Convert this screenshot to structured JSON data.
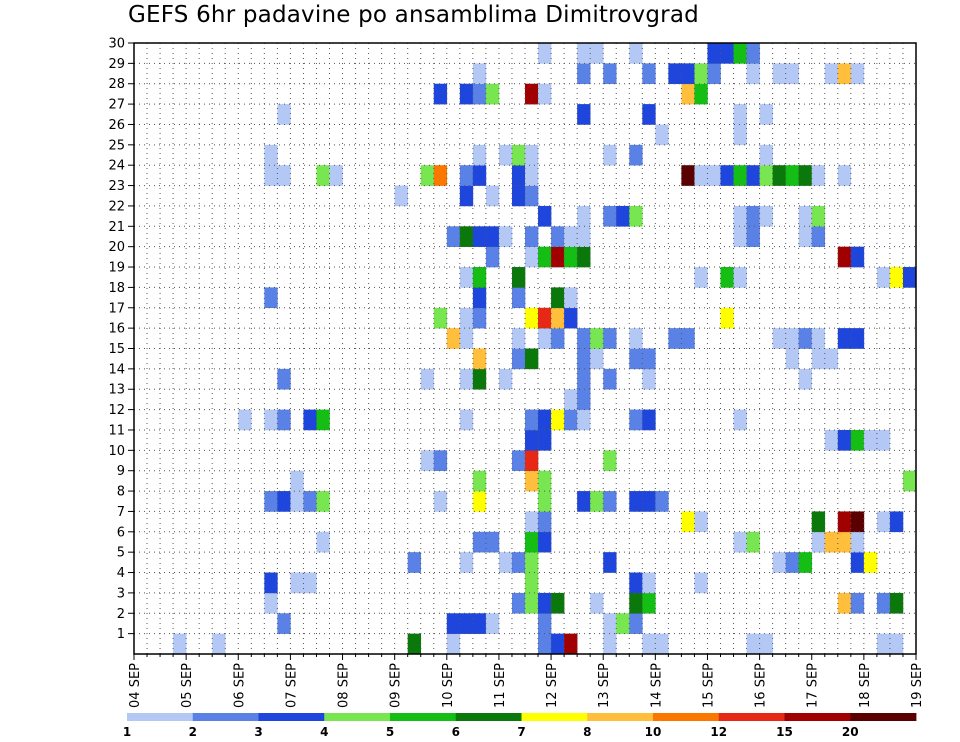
{
  "chart_data": {
    "type": "heatmap",
    "title": "GEFS 6hr padavine po ansamblima Dimitrovgrad",
    "ylim": [
      0,
      30
    ],
    "y_tick_labels": [
      "1",
      "2",
      "3",
      "4",
      "5",
      "6",
      "7",
      "8",
      "9",
      "10",
      "11",
      "12",
      "13",
      "14",
      "15",
      "16",
      "17",
      "18",
      "19",
      "20",
      "21",
      "22",
      "23",
      "24",
      "25",
      "26",
      "27",
      "28",
      "29",
      "30"
    ],
    "x_tick_labels": [
      "04 SEP",
      "05 SEP",
      "06 SEP",
      "07 SEP",
      "08 SEP",
      "09 SEP",
      "10 SEP",
      "11 SEP",
      "12 SEP",
      "13 SEP",
      "14 SEP",
      "15 SEP",
      "16 SEP",
      "17 SEP",
      "18 SEP",
      "19 SEP"
    ],
    "time_steps": 60,
    "grid": true,
    "colorbar": {
      "labels": [
        "1",
        "2",
        "3",
        "4",
        "5",
        "6",
        "7",
        "8",
        "10",
        "12",
        "15",
        "20"
      ],
      "colors": [
        "#b4c8f5",
        "#5a82e6",
        "#1e46dc",
        "#78e650",
        "#14be14",
        "#0a780a",
        "#ffff00",
        "#ffbe3c",
        "#fa7800",
        "#e62814",
        "#a00000",
        "#5a0000"
      ]
    },
    "cells": [
      [
        3,
        0,
        "#b4c8f5"
      ],
      [
        6,
        0,
        "#b4c8f5"
      ],
      [
        21,
        0,
        "#0a780a"
      ],
      [
        24,
        0,
        "#b4c8f5"
      ],
      [
        31,
        0,
        "#5a82e6"
      ],
      [
        32,
        0,
        "#1e46dc"
      ],
      [
        33,
        0,
        "#a00000"
      ],
      [
        36,
        0,
        "#b4c8f5"
      ],
      [
        39,
        0,
        "#b4c8f5"
      ],
      [
        40,
        0,
        "#b4c8f5"
      ],
      [
        47,
        0,
        "#b4c8f5"
      ],
      [
        48,
        0,
        "#b4c8f5"
      ],
      [
        57,
        0,
        "#b4c8f5"
      ],
      [
        58,
        0,
        "#b4c8f5"
      ],
      [
        11,
        1,
        "#5a82e6"
      ],
      [
        24,
        1,
        "#1e46dc"
      ],
      [
        25,
        1,
        "#1e46dc"
      ],
      [
        26,
        1,
        "#1e46dc"
      ],
      [
        27,
        1,
        "#b4c8f5"
      ],
      [
        31,
        1,
        "#5a82e6"
      ],
      [
        36,
        1,
        "#b4c8f5"
      ],
      [
        37,
        1,
        "#78e650"
      ],
      [
        38,
        1,
        "#5a82e6"
      ],
      [
        10,
        2,
        "#b4c8f5"
      ],
      [
        29,
        2,
        "#5a82e6"
      ],
      [
        30,
        2,
        "#78e650"
      ],
      [
        31,
        2,
        "#1e46dc"
      ],
      [
        32,
        2,
        "#0a780a"
      ],
      [
        35,
        2,
        "#b4c8f5"
      ],
      [
        38,
        2,
        "#0a780a"
      ],
      [
        39,
        2,
        "#14be14"
      ],
      [
        54,
        2,
        "#ffbe3c"
      ],
      [
        55,
        2,
        "#5a82e6"
      ],
      [
        57,
        2,
        "#5a82e6"
      ],
      [
        58,
        2,
        "#0a780a"
      ],
      [
        10,
        3,
        "#1e46dc"
      ],
      [
        12,
        3,
        "#b4c8f5"
      ],
      [
        13,
        3,
        "#b4c8f5"
      ],
      [
        30,
        3,
        "#78e650"
      ],
      [
        38,
        3,
        "#1e46dc"
      ],
      [
        39,
        3,
        "#b4c8f5"
      ],
      [
        43,
        3,
        "#b4c8f5"
      ],
      [
        21,
        4,
        "#5a82e6"
      ],
      [
        25,
        4,
        "#b4c8f5"
      ],
      [
        28,
        4,
        "#b4c8f5"
      ],
      [
        29,
        4,
        "#5a82e6"
      ],
      [
        30,
        4,
        "#78e650"
      ],
      [
        36,
        4,
        "#1e46dc"
      ],
      [
        49,
        4,
        "#b4c8f5"
      ],
      [
        50,
        4,
        "#5a82e6"
      ],
      [
        51,
        4,
        "#14be14"
      ],
      [
        55,
        4,
        "#1e46dc"
      ],
      [
        56,
        4,
        "#ffff00"
      ],
      [
        14,
        5,
        "#b4c8f5"
      ],
      [
        26,
        5,
        "#5a82e6"
      ],
      [
        27,
        5,
        "#5a82e6"
      ],
      [
        30,
        5,
        "#14be14"
      ],
      [
        31,
        5,
        "#1e46dc"
      ],
      [
        46,
        5,
        "#b4c8f5"
      ],
      [
        47,
        5,
        "#78e650"
      ],
      [
        52,
        5,
        "#b4c8f5"
      ],
      [
        53,
        5,
        "#ffbe3c"
      ],
      [
        54,
        5,
        "#ffbe3c"
      ],
      [
        55,
        5,
        "#b4c8f5"
      ],
      [
        30,
        6,
        "#b4c8f5"
      ],
      [
        31,
        6,
        "#5a82e6"
      ],
      [
        42,
        6,
        "#ffff00"
      ],
      [
        43,
        6,
        "#b4c8f5"
      ],
      [
        52,
        6,
        "#0a780a"
      ],
      [
        54,
        6,
        "#a00000"
      ],
      [
        55,
        6,
        "#5a0000"
      ],
      [
        57,
        6,
        "#b4c8f5"
      ],
      [
        58,
        6,
        "#1e46dc"
      ],
      [
        10,
        7,
        "#5a82e6"
      ],
      [
        11,
        7,
        "#1e46dc"
      ],
      [
        12,
        7,
        "#b4c8f5"
      ],
      [
        13,
        7,
        "#5a82e6"
      ],
      [
        14,
        7,
        "#78e650"
      ],
      [
        23,
        7,
        "#b4c8f5"
      ],
      [
        26,
        7,
        "#ffff00"
      ],
      [
        31,
        7,
        "#78e650"
      ],
      [
        34,
        7,
        "#1e46dc"
      ],
      [
        35,
        7,
        "#78e650"
      ],
      [
        36,
        7,
        "#5a82e6"
      ],
      [
        38,
        7,
        "#1e46dc"
      ],
      [
        39,
        7,
        "#1e46dc"
      ],
      [
        40,
        7,
        "#5a82e6"
      ],
      [
        12,
        8,
        "#b4c8f5"
      ],
      [
        26,
        8,
        "#78e650"
      ],
      [
        30,
        8,
        "#ffbe3c"
      ],
      [
        31,
        8,
        "#78e650"
      ],
      [
        59,
        8,
        "#78e650"
      ],
      [
        22,
        9,
        "#b4c8f5"
      ],
      [
        23,
        9,
        "#5a82e6"
      ],
      [
        29,
        9,
        "#5a82e6"
      ],
      [
        30,
        9,
        "#e62814"
      ],
      [
        36,
        9,
        "#78e650"
      ],
      [
        30,
        10,
        "#1e46dc"
      ],
      [
        31,
        10,
        "#1e46dc"
      ],
      [
        53,
        10,
        "#b4c8f5"
      ],
      [
        54,
        10,
        "#1e46dc"
      ],
      [
        55,
        10,
        "#14be14"
      ],
      [
        56,
        10,
        "#b4c8f5"
      ],
      [
        57,
        10,
        "#b4c8f5"
      ],
      [
        8,
        11,
        "#b4c8f5"
      ],
      [
        10,
        11,
        "#b4c8f5"
      ],
      [
        11,
        11,
        "#5a82e6"
      ],
      [
        13,
        11,
        "#1e46dc"
      ],
      [
        14,
        11,
        "#14be14"
      ],
      [
        25,
        11,
        "#b4c8f5"
      ],
      [
        30,
        11,
        "#5a82e6"
      ],
      [
        31,
        11,
        "#1e46dc"
      ],
      [
        32,
        11,
        "#ffff00"
      ],
      [
        33,
        11,
        "#5a82e6"
      ],
      [
        34,
        11,
        "#b4c8f5"
      ],
      [
        38,
        11,
        "#5a82e6"
      ],
      [
        39,
        11,
        "#1e46dc"
      ],
      [
        46,
        11,
        "#b4c8f5"
      ],
      [
        33,
        12,
        "#b4c8f5"
      ],
      [
        34,
        12,
        "#5a82e6"
      ],
      [
        11,
        13,
        "#5a82e6"
      ],
      [
        22,
        13,
        "#b4c8f5"
      ],
      [
        25,
        13,
        "#b4c8f5"
      ],
      [
        26,
        13,
        "#0a780a"
      ],
      [
        28,
        13,
        "#b4c8f5"
      ],
      [
        34,
        13,
        "#5a82e6"
      ],
      [
        36,
        13,
        "#5a82e6"
      ],
      [
        39,
        13,
        "#b4c8f5"
      ],
      [
        51,
        13,
        "#b4c8f5"
      ],
      [
        26,
        14,
        "#ffbe3c"
      ],
      [
        29,
        14,
        "#5a82e6"
      ],
      [
        30,
        14,
        "#0a780a"
      ],
      [
        34,
        14,
        "#5a82e6"
      ],
      [
        35,
        14,
        "#b4c8f5"
      ],
      [
        38,
        14,
        "#5a82e6"
      ],
      [
        39,
        14,
        "#5a82e6"
      ],
      [
        50,
        14,
        "#b4c8f5"
      ],
      [
        52,
        14,
        "#b4c8f5"
      ],
      [
        53,
        14,
        "#b4c8f5"
      ],
      [
        24,
        15,
        "#ffbe3c"
      ],
      [
        25,
        15,
        "#b4c8f5"
      ],
      [
        29,
        15,
        "#b4c8f5"
      ],
      [
        31,
        15,
        "#b4c8f5"
      ],
      [
        32,
        15,
        "#5a82e6"
      ],
      [
        34,
        15,
        "#5a82e6"
      ],
      [
        35,
        15,
        "#78e650"
      ],
      [
        36,
        15,
        "#5a82e6"
      ],
      [
        38,
        15,
        "#b4c8f5"
      ],
      [
        41,
        15,
        "#5a82e6"
      ],
      [
        42,
        15,
        "#5a82e6"
      ],
      [
        49,
        15,
        "#b4c8f5"
      ],
      [
        50,
        15,
        "#b4c8f5"
      ],
      [
        51,
        15,
        "#5a82e6"
      ],
      [
        52,
        15,
        "#b4c8f5"
      ],
      [
        54,
        15,
        "#1e46dc"
      ],
      [
        55,
        15,
        "#1e46dc"
      ],
      [
        23,
        16,
        "#78e650"
      ],
      [
        25,
        16,
        "#b4c8f5"
      ],
      [
        26,
        16,
        "#5a82e6"
      ],
      [
        30,
        16,
        "#ffff00"
      ],
      [
        31,
        16,
        "#e62814"
      ],
      [
        32,
        16,
        "#ffbe3c"
      ],
      [
        33,
        16,
        "#1e46dc"
      ],
      [
        45,
        16,
        "#ffff00"
      ],
      [
        10,
        17,
        "#5a82e6"
      ],
      [
        26,
        17,
        "#1e46dc"
      ],
      [
        29,
        17,
        "#5a82e6"
      ],
      [
        32,
        17,
        "#0a780a"
      ],
      [
        33,
        17,
        "#b4c8f5"
      ],
      [
        25,
        18,
        "#b4c8f5"
      ],
      [
        26,
        18,
        "#14be14"
      ],
      [
        29,
        18,
        "#0a780a"
      ],
      [
        43,
        18,
        "#b4c8f5"
      ],
      [
        45,
        18,
        "#14be14"
      ],
      [
        46,
        18,
        "#b4c8f5"
      ],
      [
        57,
        18,
        "#b4c8f5"
      ],
      [
        58,
        18,
        "#ffff00"
      ],
      [
        59,
        18,
        "#1e46dc"
      ],
      [
        27,
        19,
        "#5a82e6"
      ],
      [
        30,
        19,
        "#b4c8f5"
      ],
      [
        31,
        19,
        "#14be14"
      ],
      [
        32,
        19,
        "#a00000"
      ],
      [
        33,
        19,
        "#14be14"
      ],
      [
        34,
        19,
        "#0a780a"
      ],
      [
        54,
        19,
        "#a00000"
      ],
      [
        55,
        19,
        "#1e46dc"
      ],
      [
        24,
        20,
        "#5a82e6"
      ],
      [
        25,
        20,
        "#0a780a"
      ],
      [
        26,
        20,
        "#1e46dc"
      ],
      [
        27,
        20,
        "#1e46dc"
      ],
      [
        28,
        20,
        "#b4c8f5"
      ],
      [
        30,
        20,
        "#5a82e6"
      ],
      [
        32,
        20,
        "#5a82e6"
      ],
      [
        33,
        20,
        "#b4c8f5"
      ],
      [
        34,
        20,
        "#b4c8f5"
      ],
      [
        46,
        20,
        "#b4c8f5"
      ],
      [
        47,
        20,
        "#5a82e6"
      ],
      [
        51,
        20,
        "#b4c8f5"
      ],
      [
        52,
        20,
        "#5a82e6"
      ],
      [
        31,
        21,
        "#1e46dc"
      ],
      [
        34,
        21,
        "#b4c8f5"
      ],
      [
        36,
        21,
        "#5a82e6"
      ],
      [
        37,
        21,
        "#1e46dc"
      ],
      [
        38,
        21,
        "#78e650"
      ],
      [
        46,
        21,
        "#b4c8f5"
      ],
      [
        47,
        21,
        "#5a82e6"
      ],
      [
        48,
        21,
        "#b4c8f5"
      ],
      [
        51,
        21,
        "#b4c8f5"
      ],
      [
        52,
        21,
        "#78e650"
      ],
      [
        20,
        22,
        "#b4c8f5"
      ],
      [
        25,
        22,
        "#1e46dc"
      ],
      [
        27,
        22,
        "#b4c8f5"
      ],
      [
        29,
        22,
        "#1e46dc"
      ],
      [
        30,
        22,
        "#5a82e6"
      ],
      [
        10,
        23,
        "#b4c8f5"
      ],
      [
        11,
        23,
        "#b4c8f5"
      ],
      [
        14,
        23,
        "#78e650"
      ],
      [
        15,
        23,
        "#b4c8f5"
      ],
      [
        22,
        23,
        "#78e650"
      ],
      [
        23,
        23,
        "#fa7800"
      ],
      [
        25,
        23,
        "#5a82e6"
      ],
      [
        26,
        23,
        "#1e46dc"
      ],
      [
        29,
        23,
        "#1e46dc"
      ],
      [
        30,
        23,
        "#b4c8f5"
      ],
      [
        42,
        23,
        "#5a0000"
      ],
      [
        43,
        23,
        "#b4c8f5"
      ],
      [
        44,
        23,
        "#b4c8f5"
      ],
      [
        45,
        23,
        "#1e46dc"
      ],
      [
        46,
        23,
        "#14be14"
      ],
      [
        47,
        23,
        "#1e46dc"
      ],
      [
        48,
        23,
        "#78e650"
      ],
      [
        49,
        23,
        "#0a780a"
      ],
      [
        50,
        23,
        "#14be14"
      ],
      [
        51,
        23,
        "#0a780a"
      ],
      [
        52,
        23,
        "#b4c8f5"
      ],
      [
        54,
        23,
        "#b4c8f5"
      ],
      [
        10,
        24,
        "#b4c8f5"
      ],
      [
        26,
        24,
        "#b4c8f5"
      ],
      [
        28,
        24,
        "#b4c8f5"
      ],
      [
        29,
        24,
        "#78e650"
      ],
      [
        30,
        24,
        "#b4c8f5"
      ],
      [
        36,
        24,
        "#b4c8f5"
      ],
      [
        38,
        24,
        "#5a82e6"
      ],
      [
        48,
        24,
        "#b4c8f5"
      ],
      [
        40,
        25,
        "#b4c8f5"
      ],
      [
        46,
        25,
        "#b4c8f5"
      ],
      [
        11,
        26,
        "#b4c8f5"
      ],
      [
        34,
        26,
        "#1e46dc"
      ],
      [
        39,
        26,
        "#1e46dc"
      ],
      [
        46,
        26,
        "#b4c8f5"
      ],
      [
        48,
        26,
        "#b4c8f5"
      ],
      [
        23,
        27,
        "#1e46dc"
      ],
      [
        25,
        27,
        "#1e46dc"
      ],
      [
        26,
        27,
        "#5a82e6"
      ],
      [
        27,
        27,
        "#78e650"
      ],
      [
        30,
        27,
        "#a00000"
      ],
      [
        31,
        27,
        "#b4c8f5"
      ],
      [
        42,
        27,
        "#ffbe3c"
      ],
      [
        43,
        27,
        "#14be14"
      ],
      [
        26,
        28,
        "#b4c8f5"
      ],
      [
        34,
        28,
        "#5a82e6"
      ],
      [
        36,
        28,
        "#5a82e6"
      ],
      [
        39,
        28,
        "#5a82e6"
      ],
      [
        41,
        28,
        "#1e46dc"
      ],
      [
        42,
        28,
        "#1e46dc"
      ],
      [
        43,
        28,
        "#78e650"
      ],
      [
        44,
        28,
        "#5a82e6"
      ],
      [
        47,
        28,
        "#b4c8f5"
      ],
      [
        49,
        28,
        "#b4c8f5"
      ],
      [
        50,
        28,
        "#b4c8f5"
      ],
      [
        53,
        28,
        "#b4c8f5"
      ],
      [
        54,
        28,
        "#ffbe3c"
      ],
      [
        55,
        28,
        "#b4c8f5"
      ],
      [
        31,
        29,
        "#b4c8f5"
      ],
      [
        34,
        29,
        "#b4c8f5"
      ],
      [
        35,
        29,
        "#b4c8f5"
      ],
      [
        38,
        29,
        "#b4c8f5"
      ],
      [
        44,
        29,
        "#1e46dc"
      ],
      [
        45,
        29,
        "#1e46dc"
      ],
      [
        46,
        29,
        "#14be14"
      ],
      [
        47,
        29,
        "#5a82e6"
      ]
    ]
  }
}
